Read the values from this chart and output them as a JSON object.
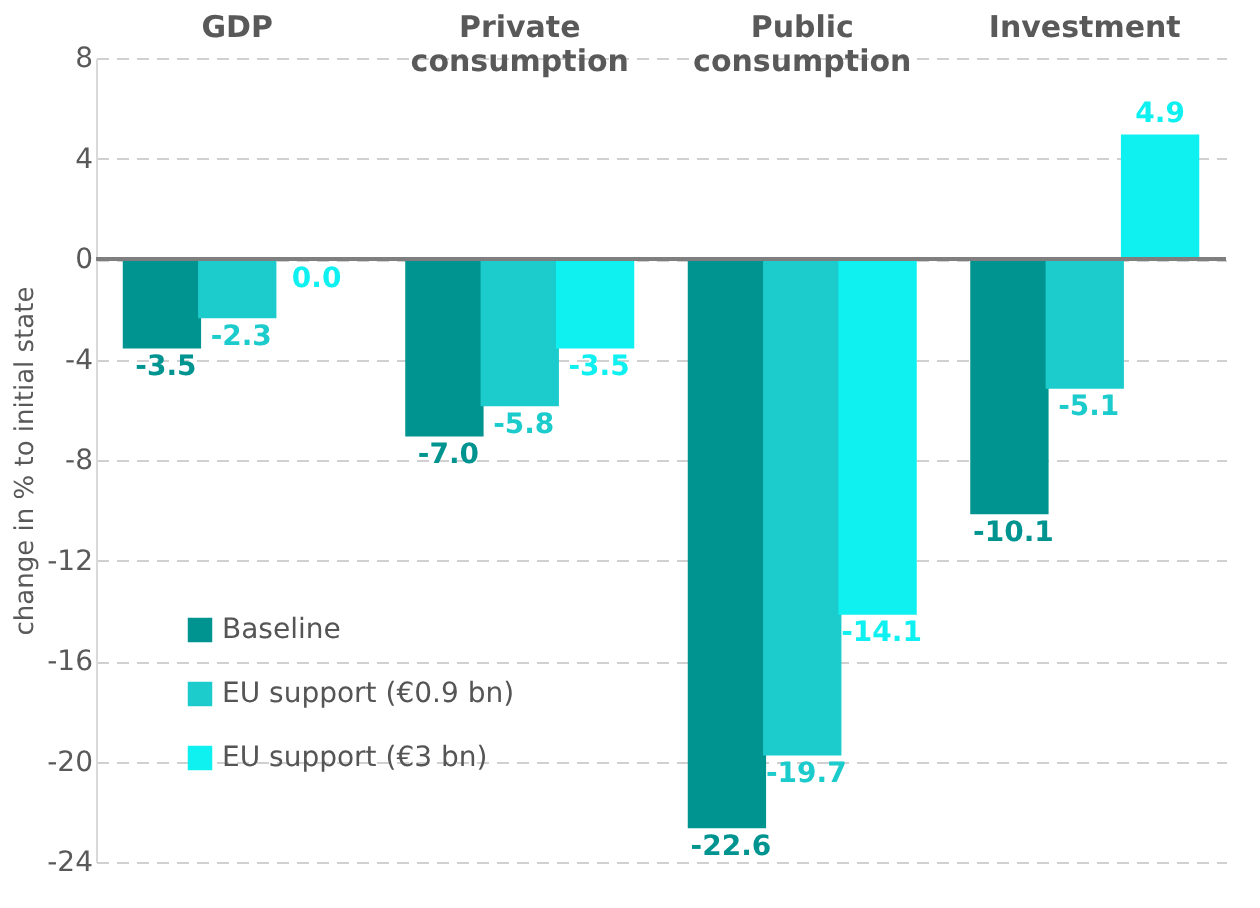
{
  "chart_data": {
    "type": "bar",
    "ylabel": "change in % to initial state",
    "categories": [
      "GDP",
      "Private consumption",
      "Public consumption",
      "Investment"
    ],
    "series": [
      {
        "name": "Baseline",
        "color": "#009490",
        "values": [
          -3.5,
          -7.0,
          -22.6,
          -10.1
        ],
        "value_labels": [
          "-3.5",
          "-7.0",
          "-22.6",
          "-10.1"
        ]
      },
      {
        "name": "EU support (€0.9 bn)",
        "color": "#1ccbcb",
        "values": [
          -2.3,
          -5.8,
          -19.7,
          -5.1
        ],
        "value_labels": [
          "-2.3",
          "-5.8",
          "-19.7",
          "-5.1"
        ]
      },
      {
        "name": "EU support (€3 bn)",
        "color": "#0ff0f0",
        "values": [
          0.0,
          -3.5,
          -14.1,
          4.9
        ],
        "value_labels": [
          "0.0",
          "-3.5",
          "-14.1",
          "4.9"
        ]
      }
    ],
    "ylim": [
      -24,
      8
    ],
    "yticks": [
      -24,
      -20,
      -16,
      -12,
      -8,
      -4,
      0,
      4,
      8
    ],
    "grid": "y",
    "legend": "bottom left"
  }
}
